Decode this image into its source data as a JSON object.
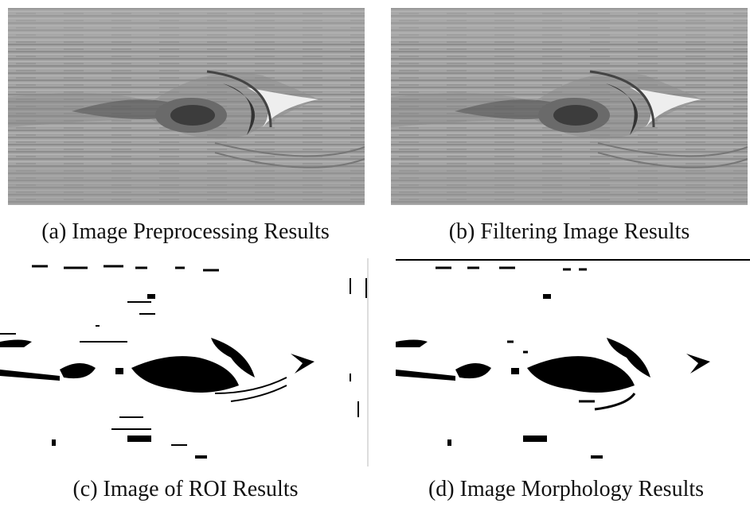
{
  "figure": {
    "panels": [
      {
        "caption": "(a) Image Preprocessing Results"
      },
      {
        "caption": "(b) Filtering Image Results"
      },
      {
        "caption": "(c) Image of ROI Results"
      },
      {
        "caption": "(d) Image Morphology Results"
      }
    ]
  }
}
